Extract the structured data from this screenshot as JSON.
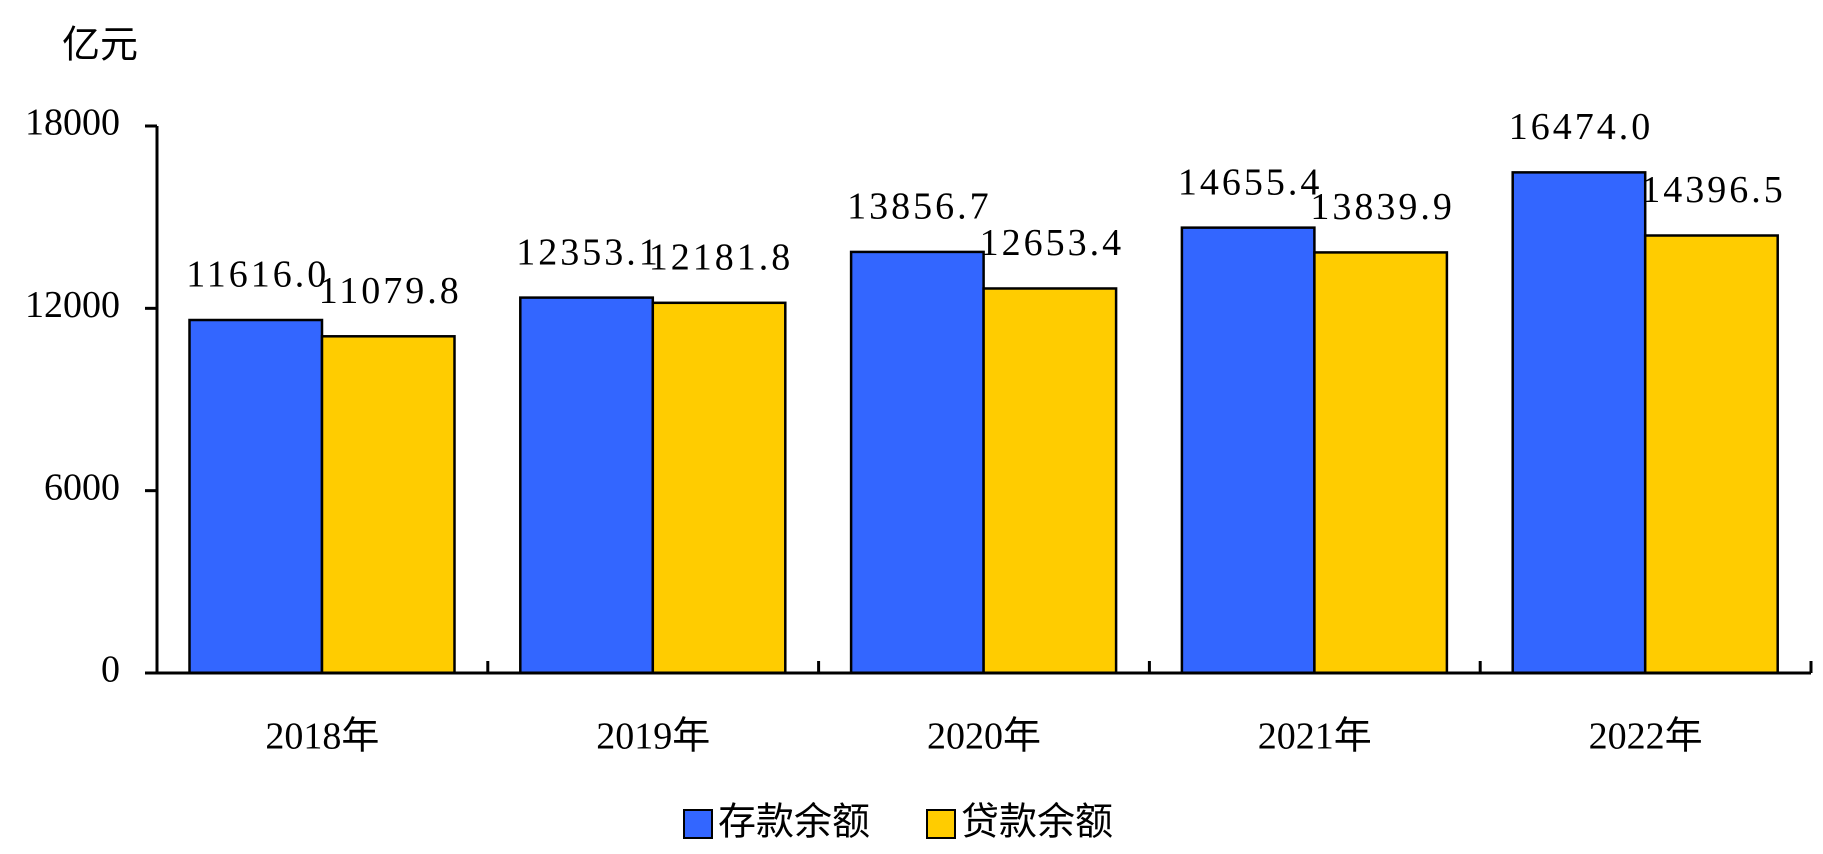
{
  "chart_data": {
    "type": "bar",
    "y_unit": "亿元",
    "categories": [
      "2018年",
      "2019年",
      "2020年",
      "2021年",
      "2022年"
    ],
    "series": [
      {
        "name": "存款余额",
        "color": "#3366ff",
        "values": [
          11616.0,
          12353.1,
          13856.7,
          14655.4,
          16474.0
        ],
        "value_labels": [
          "11616.0",
          "12353.1",
          "13856.7",
          "14655.4",
          "16474.0"
        ]
      },
      {
        "name": "贷款余额",
        "color": "#ffcc00",
        "values": [
          11079.8,
          12181.8,
          12653.4,
          13839.9,
          14396.5
        ],
        "value_labels": [
          "11079.8",
          "12181.8",
          "12653.4",
          "13839.9",
          "14396.5"
        ]
      }
    ],
    "ylim": [
      0,
      18000
    ],
    "yticks": [
      0,
      6000,
      12000,
      18000
    ]
  }
}
